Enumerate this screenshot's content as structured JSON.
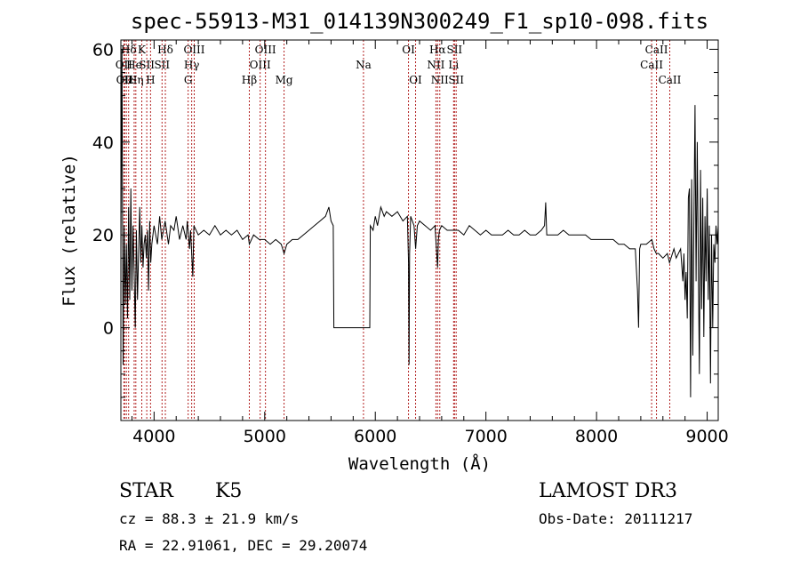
{
  "chart_data": {
    "type": "line",
    "title": "spec-55913-M31_014139N300249_F1_sp10-098.fits",
    "xlabel": "Wavelength (Å)",
    "ylabel": "Flux (relative)",
    "xlim": [
      3700,
      9100
    ],
    "ylim": [
      -20,
      62
    ],
    "xticks": [
      4000,
      5000,
      6000,
      7000,
      8000,
      9000
    ],
    "yticks": [
      0,
      20,
      40,
      60
    ],
    "grid": false,
    "series": [
      {
        "values_xy": [
          [
            3700,
            17
          ],
          [
            3710,
            60
          ],
          [
            3720,
            -8
          ],
          [
            3730,
            22
          ],
          [
            3740,
            5
          ],
          [
            3750,
            18
          ],
          [
            3760,
            2
          ],
          [
            3770,
            26
          ],
          [
            3780,
            6
          ],
          [
            3790,
            30
          ],
          [
            3800,
            8
          ],
          [
            3810,
            22
          ],
          [
            3820,
            12
          ],
          [
            3830,
            0
          ],
          [
            3840,
            21
          ],
          [
            3850,
            6
          ],
          [
            3860,
            16
          ],
          [
            3870,
            26
          ],
          [
            3880,
            14
          ],
          [
            3890,
            22
          ],
          [
            3900,
            13
          ],
          [
            3910,
            18
          ],
          [
            3920,
            20
          ],
          [
            3930,
            15
          ],
          [
            3940,
            21
          ],
          [
            3950,
            8
          ],
          [
            3960,
            23
          ],
          [
            3970,
            14
          ],
          [
            3980,
            18
          ],
          [
            4000,
            22
          ],
          [
            4030,
            18
          ],
          [
            4050,
            24
          ],
          [
            4070,
            19
          ],
          [
            4100,
            23
          ],
          [
            4130,
            18
          ],
          [
            4150,
            22
          ],
          [
            4180,
            21
          ],
          [
            4200,
            24
          ],
          [
            4230,
            19
          ],
          [
            4260,
            22
          ],
          [
            4290,
            19
          ],
          [
            4300,
            23
          ],
          [
            4320,
            17
          ],
          [
            4330,
            21
          ],
          [
            4350,
            11
          ],
          [
            4360,
            22
          ],
          [
            4400,
            20
          ],
          [
            4450,
            21
          ],
          [
            4500,
            20
          ],
          [
            4550,
            22
          ],
          [
            4600,
            20
          ],
          [
            4650,
            21
          ],
          [
            4700,
            20
          ],
          [
            4750,
            21
          ],
          [
            4800,
            19
          ],
          [
            4850,
            20
          ],
          [
            4861,
            18
          ],
          [
            4900,
            20
          ],
          [
            4950,
            19
          ],
          [
            5000,
            19
          ],
          [
            5050,
            18
          ],
          [
            5100,
            19
          ],
          [
            5150,
            18
          ],
          [
            5175,
            16
          ],
          [
            5200,
            18
          ],
          [
            5250,
            19
          ],
          [
            5300,
            19
          ],
          [
            5350,
            20
          ],
          [
            5400,
            21
          ],
          [
            5450,
            22
          ],
          [
            5500,
            23
          ],
          [
            5550,
            24
          ],
          [
            5580,
            26
          ],
          [
            5600,
            23
          ],
          [
            5620,
            22
          ],
          [
            5625,
            0
          ],
          [
            5950,
            0
          ],
          [
            5955,
            22
          ],
          [
            5980,
            21
          ],
          [
            6000,
            24
          ],
          [
            6020,
            22
          ],
          [
            6050,
            26
          ],
          [
            6080,
            24
          ],
          [
            6100,
            25
          ],
          [
            6150,
            24
          ],
          [
            6200,
            25
          ],
          [
            6250,
            23
          ],
          [
            6290,
            24
          ],
          [
            6300,
            14
          ],
          [
            6305,
            -8
          ],
          [
            6310,
            16
          ],
          [
            6320,
            24
          ],
          [
            6350,
            22
          ],
          [
            6365,
            17
          ],
          [
            6380,
            22
          ],
          [
            6400,
            23
          ],
          [
            6450,
            22
          ],
          [
            6500,
            21
          ],
          [
            6540,
            22
          ],
          [
            6555,
            16
          ],
          [
            6563,
            13
          ],
          [
            6570,
            19
          ],
          [
            6580,
            21
          ],
          [
            6600,
            22
          ],
          [
            6650,
            21
          ],
          [
            6700,
            21
          ],
          [
            6750,
            21
          ],
          [
            6800,
            20
          ],
          [
            6850,
            22
          ],
          [
            6900,
            21
          ],
          [
            6950,
            20
          ],
          [
            7000,
            21
          ],
          [
            7050,
            20
          ],
          [
            7100,
            20
          ],
          [
            7150,
            20
          ],
          [
            7200,
            21
          ],
          [
            7250,
            20
          ],
          [
            7300,
            20
          ],
          [
            7350,
            21
          ],
          [
            7400,
            20
          ],
          [
            7450,
            20
          ],
          [
            7500,
            21
          ],
          [
            7530,
            22
          ],
          [
            7540,
            27
          ],
          [
            7550,
            20
          ],
          [
            7600,
            20
          ],
          [
            7650,
            20
          ],
          [
            7700,
            21
          ],
          [
            7750,
            20
          ],
          [
            7800,
            20
          ],
          [
            7850,
            20
          ],
          [
            7900,
            20
          ],
          [
            7950,
            19
          ],
          [
            8000,
            19
          ],
          [
            8050,
            19
          ],
          [
            8100,
            19
          ],
          [
            8150,
            19
          ],
          [
            8200,
            18
          ],
          [
            8250,
            18
          ],
          [
            8300,
            17
          ],
          [
            8350,
            17
          ],
          [
            8370,
            8
          ],
          [
            8380,
            0
          ],
          [
            8390,
            17
          ],
          [
            8400,
            18
          ],
          [
            8450,
            18
          ],
          [
            8500,
            19
          ],
          [
            8520,
            17
          ],
          [
            8540,
            16
          ],
          [
            8560,
            16
          ],
          [
            8600,
            15
          ],
          [
            8640,
            16
          ],
          [
            8660,
            14
          ],
          [
            8700,
            17
          ],
          [
            8720,
            15
          ],
          [
            8740,
            16
          ],
          [
            8760,
            17
          ],
          [
            8780,
            10
          ],
          [
            8790,
            16
          ],
          [
            8800,
            6
          ],
          [
            8810,
            12
          ],
          [
            8820,
            2
          ],
          [
            8830,
            28
          ],
          [
            8840,
            30
          ],
          [
            8850,
            -15
          ],
          [
            8860,
            32
          ],
          [
            8870,
            -6
          ],
          [
            8880,
            22
          ],
          [
            8890,
            48
          ],
          [
            8900,
            10
          ],
          [
            8910,
            40
          ],
          [
            8920,
            14
          ],
          [
            8930,
            -10
          ],
          [
            8940,
            34
          ],
          [
            8950,
            4
          ],
          [
            8960,
            28
          ],
          [
            8970,
            -2
          ],
          [
            8980,
            24
          ],
          [
            8990,
            10
          ],
          [
            9000,
            30
          ],
          [
            9010,
            6
          ],
          [
            9020,
            22
          ],
          [
            9030,
            -12
          ],
          [
            9040,
            20
          ],
          [
            9050,
            0
          ],
          [
            9060,
            18
          ],
          [
            9070,
            14
          ],
          [
            9080,
            22
          ],
          [
            9090,
            18
          ],
          [
            9100,
            22
          ]
        ]
      }
    ],
    "line_markers": [
      {
        "wl": 3727,
        "label": "OII",
        "row": 2
      },
      {
        "wl": 3734,
        "label": "OII",
        "row": 3
      },
      {
        "wl": 3750,
        "label": "Hε",
        "row": 3
      },
      {
        "wl": 3770,
        "label": "Hδ",
        "row": 1
      },
      {
        "wl": 3820,
        "label": "He",
        "row": 2
      },
      {
        "wl": 3835,
        "label": "Hη",
        "row": 3
      },
      {
        "wl": 3889,
        "label": "K",
        "row": 1
      },
      {
        "wl": 3934,
        "label": "SII",
        "row": 2
      },
      {
        "wl": 3968,
        "label": "H",
        "row": 3
      },
      {
        "wl": 4102,
        "label": "Hδ",
        "row": 1
      },
      {
        "wl": 4072,
        "label": "SII",
        "row": 2
      },
      {
        "wl": 4308,
        "label": "G",
        "row": 3
      },
      {
        "wl": 4340,
        "label": "Hγ",
        "row": 2
      },
      {
        "wl": 4363,
        "label": "OIII",
        "row": 1
      },
      {
        "wl": 4861,
        "label": "Hβ",
        "row": 3
      },
      {
        "wl": 4959,
        "label": "OIII",
        "row": 2
      },
      {
        "wl": 5007,
        "label": "OIII",
        "row": 1
      },
      {
        "wl": 5175,
        "label": "Mg",
        "row": 3
      },
      {
        "wl": 5893,
        "label": "Na",
        "row": 2
      },
      {
        "wl": 6300,
        "label": "OI",
        "row": 1
      },
      {
        "wl": 6364,
        "label": "OI",
        "row": 3
      },
      {
        "wl": 6548,
        "label": "NII",
        "row": 2
      },
      {
        "wl": 6563,
        "label": "Hα",
        "row": 1
      },
      {
        "wl": 6583,
        "label": "NII",
        "row": 3
      },
      {
        "wl": 6708,
        "label": "Li",
        "row": 2
      },
      {
        "wl": 6716,
        "label": "SII",
        "row": 1
      },
      {
        "wl": 6731,
        "label": "SII",
        "row": 3
      },
      {
        "wl": 8498,
        "label": "CaII",
        "row": 2
      },
      {
        "wl": 8542,
        "label": "CaII",
        "row": 1
      },
      {
        "wl": 8662,
        "label": "CaII",
        "row": 3
      }
    ]
  },
  "info": {
    "class": "STAR",
    "subclass": "K5",
    "cz": "cz = 88.3 ± 21.9 km/s",
    "radec": "RA =  22.91061, DEC =  29.20074",
    "survey": "LAMOST DR3",
    "obsdate": "Obs-Date: 20111217"
  },
  "colors": {
    "spectrum": "#000000",
    "marker": "#b22222"
  }
}
